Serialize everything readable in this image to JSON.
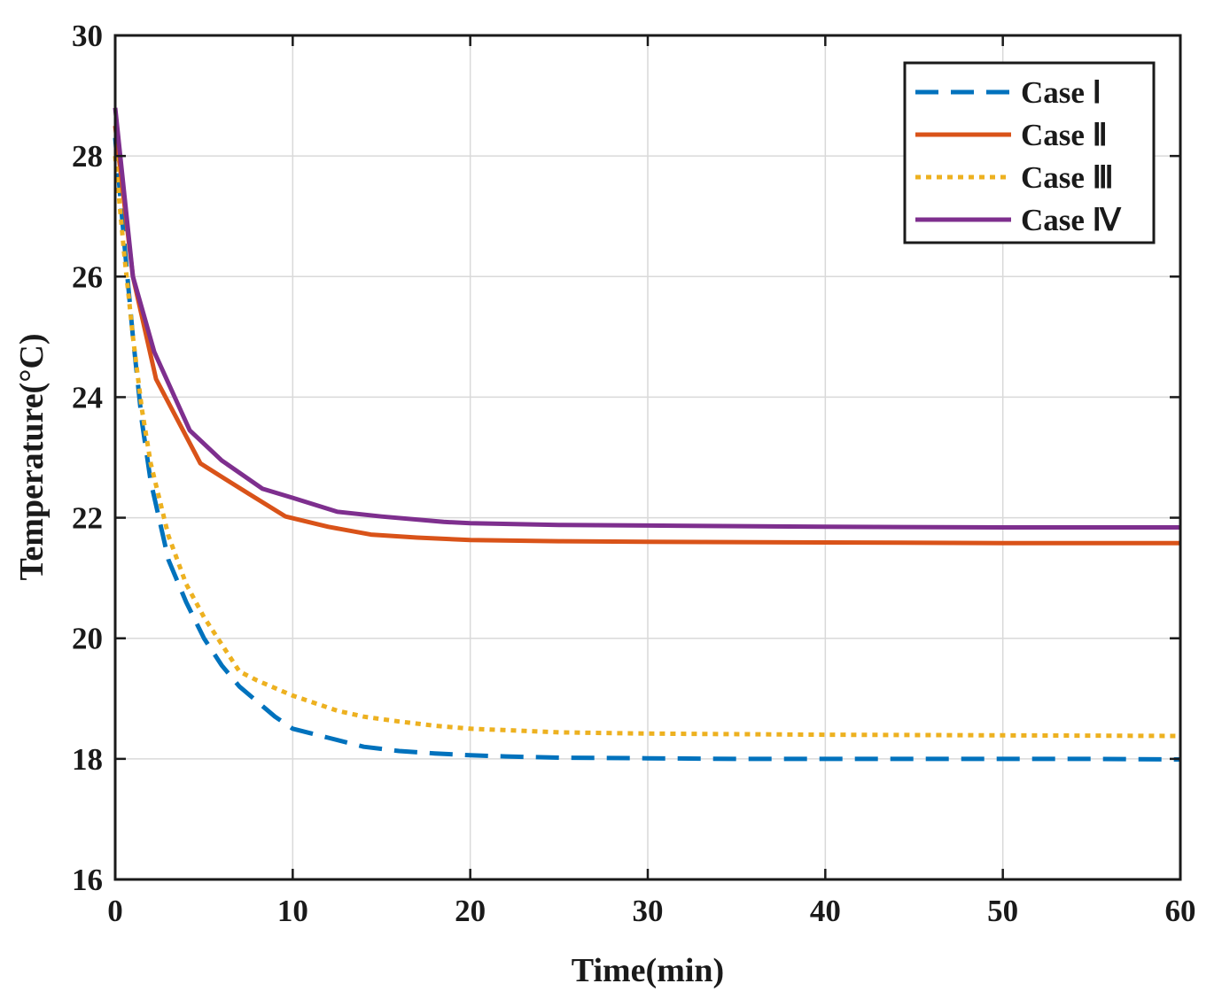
{
  "chart_data": {
    "type": "line",
    "xlabel": "Time(min)",
    "ylabel": "Temperature(°C)",
    "xlim": [
      0,
      60
    ],
    "ylim": [
      16,
      30
    ],
    "x_ticks": [
      0,
      10,
      20,
      30,
      40,
      50,
      60
    ],
    "y_ticks": [
      16,
      18,
      20,
      22,
      24,
      26,
      28,
      30
    ],
    "grid": true,
    "legend_position": "top-right",
    "series": [
      {
        "name": "Case Ⅰ",
        "color": "#0072BD",
        "style": "dashed",
        "x": [
          0,
          0.5,
          1,
          1.5,
          2,
          3,
          4,
          5,
          6,
          7,
          8,
          9,
          10,
          12,
          14,
          16,
          18,
          20,
          22,
          25,
          30,
          35,
          40,
          45,
          50,
          55,
          60
        ],
        "y": [
          28.3,
          26.6,
          25.0,
          23.6,
          22.6,
          21.3,
          20.6,
          20.0,
          19.55,
          19.2,
          18.95,
          18.7,
          18.5,
          18.35,
          18.2,
          18.13,
          18.09,
          18.06,
          18.04,
          18.02,
          18.01,
          18.0,
          18.0,
          18.0,
          18.0,
          18.0,
          17.99
        ]
      },
      {
        "name": "Case Ⅱ",
        "color": "#D95319",
        "style": "solid",
        "x": [
          0,
          1,
          2.3,
          4.8,
          7.5,
          9.6,
          12,
          14.4,
          17,
          20,
          25,
          30,
          40,
          50,
          60
        ],
        "y": [
          28.5,
          26.0,
          24.3,
          22.9,
          22.4,
          22.02,
          21.85,
          21.72,
          21.67,
          21.63,
          21.61,
          21.6,
          21.59,
          21.58,
          21.58
        ]
      },
      {
        "name": "Case Ⅲ",
        "color": "#EDB120",
        "style": "dotted",
        "x": [
          0,
          0.5,
          1,
          1.5,
          2,
          3,
          4,
          5,
          6,
          7,
          8,
          10,
          12.5,
          14,
          16,
          18,
          20,
          25,
          30,
          40,
          50,
          60
        ],
        "y": [
          28.0,
          26.4,
          25.0,
          23.8,
          22.9,
          21.7,
          20.9,
          20.35,
          19.9,
          19.45,
          19.3,
          19.05,
          18.8,
          18.7,
          18.62,
          18.55,
          18.5,
          18.44,
          18.42,
          18.4,
          18.39,
          18.38
        ]
      },
      {
        "name": "Case Ⅳ",
        "color": "#7E2F8E",
        "style": "solid",
        "x": [
          0,
          1,
          2.2,
          4.2,
          6,
          8.3,
          10,
          12.5,
          15,
          18.5,
          20,
          25,
          30,
          40,
          50,
          60
        ],
        "y": [
          28.8,
          26.0,
          24.75,
          23.45,
          22.95,
          22.48,
          22.33,
          22.1,
          22.02,
          21.93,
          21.91,
          21.88,
          21.87,
          21.85,
          21.84,
          21.84
        ]
      }
    ]
  }
}
